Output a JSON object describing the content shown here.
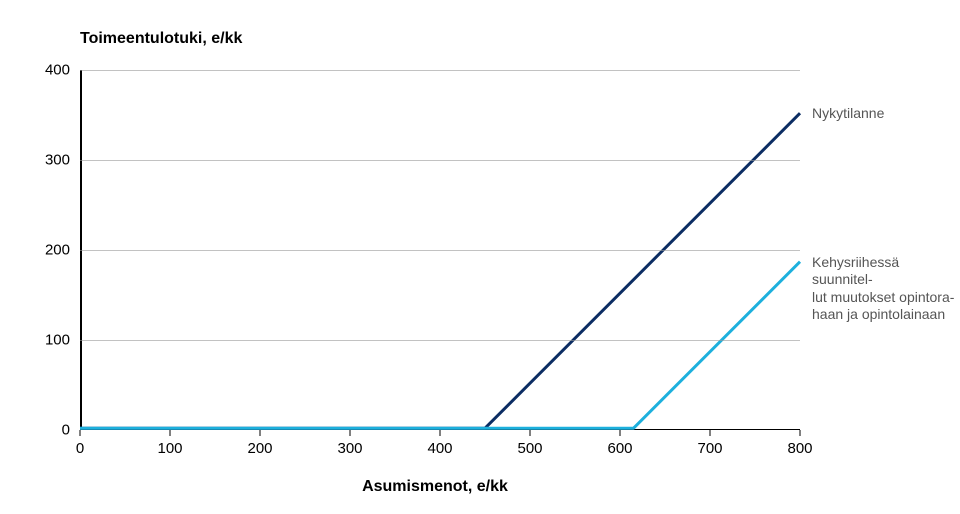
{
  "chart": {
    "type": "line",
    "y_title": "Toimeentulotuki, e/kk",
    "x_title": "Asumismenot, e/kk",
    "background_color": "#ffffff",
    "grid_color": "#999999",
    "axis_color": "#000000",
    "title_fontsize": 16,
    "tick_fontsize": 15,
    "legend_fontsize": 14,
    "xlim": [
      0,
      800
    ],
    "ylim": [
      0,
      400
    ],
    "xtick_step": 100,
    "ytick_step": 100,
    "xticks": [
      0,
      100,
      200,
      300,
      400,
      500,
      600,
      700,
      800
    ],
    "yticks": [
      0,
      100,
      200,
      300,
      400
    ],
    "line_width": 3,
    "legend_color": "#555555",
    "series": [
      {
        "name": "Nykytilanne",
        "color": "#0c2d63",
        "x": [
          0,
          450,
          800
        ],
        "y": [
          2,
          2,
          352
        ]
      },
      {
        "name": "Kehysriihessä suunnitel-\nlut muutokset opintora-\nhaan ja opintolainaan",
        "color": "#1db0dd",
        "x": [
          0,
          615,
          800
        ],
        "y": [
          2,
          2,
          187
        ]
      }
    ]
  }
}
